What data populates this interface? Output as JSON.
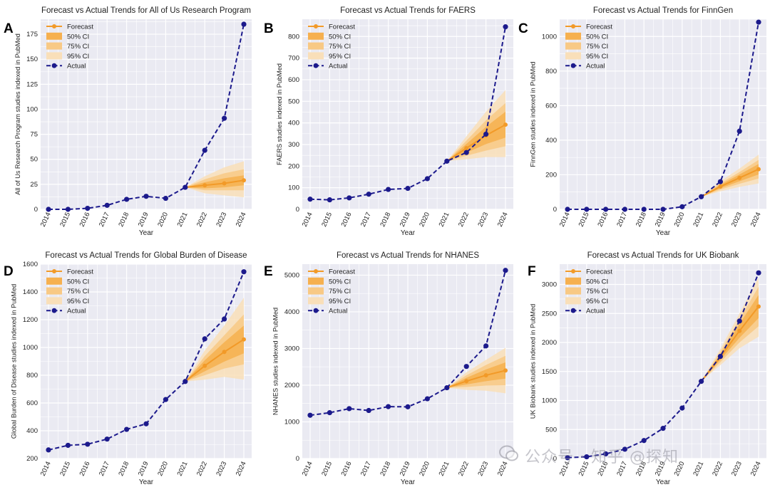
{
  "figure": {
    "legend_labels": [
      "Forecast",
      "50% CI",
      "75% CI",
      "95% CI",
      "Actual"
    ],
    "x_label": "Year",
    "colors": {
      "actual": "#1c1a8c",
      "forecast": "#f29a28",
      "ci50": "#f6b04f",
      "ci75": "#f8c985",
      "ci95": "#f9dfb9",
      "plot_bg": "#eaeaf2",
      "grid": "#ffffff"
    }
  },
  "watermark": {
    "text": "公众号 · 知乎 @探知"
  },
  "chart_data": [
    {
      "panel": "A",
      "type": "line",
      "title": "Forecast vs Actual Trends for All of Us Research Program",
      "xlabel": "Year",
      "ylabel": "All of Us Research Program studies indexed in PubMed",
      "categories": [
        "2014",
        "2015",
        "2016",
        "2017",
        "2018",
        "2019",
        "2020",
        "2021",
        "2022",
        "2023",
        "2024"
      ],
      "ylim": [
        0,
        190
      ],
      "yticks": [
        0,
        25,
        50,
        75,
        100,
        125,
        150,
        175
      ],
      "legend": "top-left",
      "grid": true,
      "actual": [
        0,
        0,
        1,
        4,
        10,
        13,
        11,
        22,
        59,
        91,
        185
      ],
      "forecast": {
        "start_index": 7,
        "values": [
          22,
          24,
          26,
          29
        ]
      },
      "ci": {
        "ci50": {
          "lower": [
            22,
            21,
            22,
            24
          ],
          "upper": [
            22,
            27,
            31,
            34
          ]
        },
        "ci75": {
          "lower": [
            22,
            19,
            19,
            19
          ],
          "upper": [
            22,
            30,
            36,
            40
          ]
        },
        "ci95": {
          "lower": [
            22,
            16,
            14,
            12
          ],
          "upper": [
            22,
            33,
            42,
            48
          ]
        }
      }
    },
    {
      "panel": "B",
      "type": "line",
      "title": "Forecast vs Actual Trends for FAERS",
      "xlabel": "Year",
      "ylabel": "FAERS studies indexed in PubMed",
      "categories": [
        "2014",
        "2015",
        "2016",
        "2017",
        "2018",
        "2019",
        "2020",
        "2021",
        "2022",
        "2023",
        "2024"
      ],
      "ylim": [
        0,
        880
      ],
      "yticks": [
        0,
        100,
        200,
        300,
        400,
        500,
        600,
        700,
        800
      ],
      "legend": "top-left",
      "grid": true,
      "actual": [
        47,
        44,
        53,
        70,
        92,
        97,
        142,
        223,
        263,
        348,
        845
      ],
      "forecast": {
        "start_index": 7,
        "values": [
          223,
          283,
          342,
          392
        ]
      },
      "ci": {
        "ci50": {
          "lower": [
            223,
            262,
            302,
            332
          ],
          "upper": [
            223,
            303,
            382,
            452
          ]
        },
        "ci75": {
          "lower": [
            223,
            248,
            272,
            292
          ],
          "upper": [
            223,
            318,
            412,
            492
          ]
        },
        "ci95": {
          "lower": [
            223,
            232,
            242,
            242
          ],
          "upper": [
            223,
            338,
            452,
            552
          ]
        }
      }
    },
    {
      "panel": "C",
      "type": "line",
      "title": "Forecast vs Actual Trends for FinnGen",
      "xlabel": "Year",
      "ylabel": "FinnGen studies indexed in PubMed",
      "categories": [
        "2014",
        "2015",
        "2016",
        "2017",
        "2018",
        "2019",
        "2020",
        "2021",
        "2022",
        "2023",
        "2024"
      ],
      "ylim": [
        0,
        1100
      ],
      "yticks": [
        0,
        200,
        400,
        600,
        800,
        1000
      ],
      "legend": "top-left",
      "grid": true,
      "actual": [
        0,
        0,
        0,
        0,
        0,
        0,
        15,
        73,
        160,
        452,
        1083
      ],
      "forecast": {
        "start_index": 7,
        "values": [
          73,
          132,
          182,
          232
        ]
      },
      "ci": {
        "ci50": {
          "lower": [
            73,
            122,
            162,
            202
          ],
          "upper": [
            73,
            142,
            202,
            262
          ]
        },
        "ci75": {
          "lower": [
            73,
            114,
            148,
            178
          ],
          "upper": [
            73,
            150,
            216,
            286
          ]
        },
        "ci95": {
          "lower": [
            73,
            104,
            130,
            150
          ],
          "upper": [
            73,
            162,
            236,
            316
          ]
        }
      }
    },
    {
      "panel": "D",
      "type": "line",
      "title": "Forecast vs Actual Trends for Global Burden of Disease",
      "xlabel": "Year",
      "ylabel": "Global Burden of Disease studies indexed in PubMed",
      "categories": [
        "2014",
        "2015",
        "2016",
        "2017",
        "2018",
        "2019",
        "2020",
        "2021",
        "2022",
        "2023",
        "2024"
      ],
      "ylim": [
        200,
        1600
      ],
      "yticks": [
        200,
        400,
        600,
        800,
        1000,
        1200,
        1400,
        1600
      ],
      "legend": "top-left",
      "grid": true,
      "actual": [
        262,
        295,
        303,
        340,
        410,
        450,
        625,
        755,
        1062,
        1205,
        1545
      ],
      "forecast": {
        "start_index": 7,
        "values": [
          755,
          868,
          968,
          1058
        ]
      },
      "ci": {
        "ci50": {
          "lower": [
            755,
            828,
            898,
            958
          ],
          "upper": [
            755,
            908,
            1038,
            1158
          ]
        },
        "ci75": {
          "lower": [
            755,
            800,
            848,
            878
          ],
          "upper": [
            755,
            938,
            1088,
            1238
          ]
        },
        "ci95": {
          "lower": [
            755,
            768,
            788,
            768
          ],
          "upper": [
            755,
            978,
            1158,
            1358
          ]
        }
      }
    },
    {
      "panel": "E",
      "type": "line",
      "title": "Forecast vs Actual Trends for NHANES",
      "xlabel": "Year",
      "ylabel": "NHANES studies indexed in PubMed",
      "categories": [
        "2014",
        "2015",
        "2016",
        "2017",
        "2018",
        "2019",
        "2020",
        "2021",
        "2022",
        "2023",
        "2024"
      ],
      "ylim": [
        0,
        5300
      ],
      "yticks": [
        0,
        1000,
        2000,
        3000,
        4000,
        5000
      ],
      "legend": "top-left",
      "grid": true,
      "actual": [
        1180,
        1250,
        1360,
        1310,
        1415,
        1410,
        1630,
        1930,
        2510,
        3070,
        5130
      ],
      "forecast": {
        "start_index": 7,
        "values": [
          1930,
          2110,
          2270,
          2400
        ]
      },
      "ci": {
        "ci50": {
          "lower": [
            1930,
            2020,
            2110,
            2180
          ],
          "upper": [
            1930,
            2200,
            2430,
            2620
          ]
        },
        "ci75": {
          "lower": [
            1930,
            1950,
            1990,
            2000
          ],
          "upper": [
            1930,
            2270,
            2550,
            2800
          ]
        },
        "ci95": {
          "lower": [
            1930,
            1870,
            1850,
            1780
          ],
          "upper": [
            1930,
            2350,
            2690,
            3020
          ]
        }
      }
    },
    {
      "panel": "F",
      "type": "line",
      "title": "Forecast vs Actual Trends for UK Biobank",
      "xlabel": "Year",
      "ylabel": "UK Biobank studies indexed in PubMed",
      "categories": [
        "2014",
        "2015",
        "2016",
        "2017",
        "2018",
        "2019",
        "2020",
        "2021",
        "2022",
        "2023",
        "2024"
      ],
      "ylim": [
        0,
        3350
      ],
      "yticks": [
        0,
        500,
        1000,
        1500,
        2000,
        2500,
        3000
      ],
      "legend": "top-left",
      "grid": true,
      "actual": [
        15,
        30,
        80,
        160,
        310,
        520,
        870,
        1330,
        1760,
        2370,
        3200
      ],
      "forecast": {
        "start_index": 7,
        "values": [
          1330,
          1750,
          2200,
          2620
        ]
      },
      "ci": {
        "ci50": {
          "lower": [
            1330,
            1700,
            2080,
            2420
          ],
          "upper": [
            1330,
            1800,
            2320,
            2820
          ]
        },
        "ci75": {
          "lower": [
            1330,
            1660,
            2000,
            2280
          ],
          "upper": [
            1330,
            1840,
            2400,
            2960
          ]
        },
        "ci95": {
          "lower": [
            1330,
            1610,
            1900,
            2100
          ],
          "upper": [
            1330,
            1890,
            2500,
            3120
          ]
        }
      }
    }
  ]
}
